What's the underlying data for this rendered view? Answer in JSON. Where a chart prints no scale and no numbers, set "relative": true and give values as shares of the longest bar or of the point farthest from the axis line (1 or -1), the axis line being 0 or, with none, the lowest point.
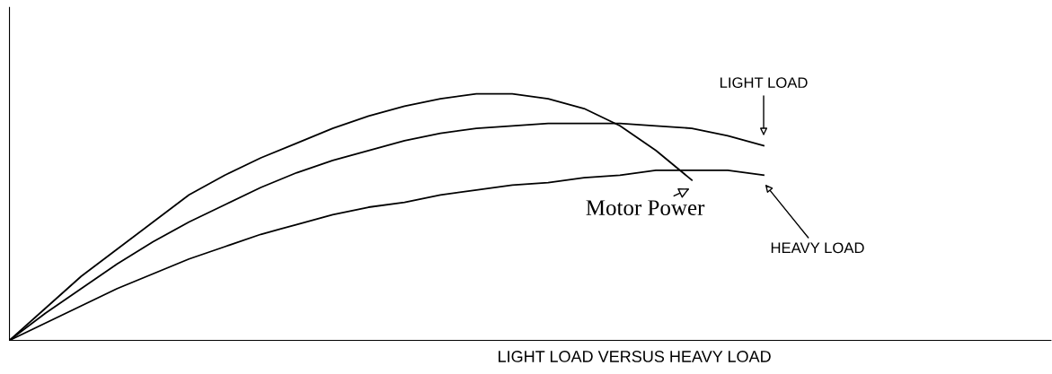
{
  "chart_data": {
    "type": "line",
    "relative": true,
    "xlabel": "LIGHT LOAD VERSUS HEAVY LOAD",
    "marker": "none",
    "line_style": "solid",
    "categories": [
      null,
      null,
      null,
      null,
      null,
      null,
      null,
      null,
      null,
      null,
      null,
      null,
      null,
      null,
      null,
      null,
      null,
      null,
      null,
      null,
      null,
      null,
      null,
      null,
      null,
      null,
      null,
      null,
      null,
      null
    ],
    "series": [
      {
        "name": "Motor Power",
        "color": "#000000",
        "values": [
          0,
          0.13,
          0.26,
          0.37,
          0.48,
          0.59,
          0.67,
          0.74,
          0.8,
          0.86,
          0.91,
          0.95,
          0.98,
          1.0,
          1.0,
          0.98,
          0.94,
          0.87,
          0.77,
          0.65,
          null,
          null,
          null,
          null,
          null,
          null,
          null,
          null,
          null,
          null
        ]
      },
      {
        "name": "LIGHT LOAD",
        "color": "#000000",
        "values": [
          0,
          0.11,
          0.21,
          0.31,
          0.4,
          0.48,
          0.55,
          0.62,
          0.68,
          0.73,
          0.77,
          0.81,
          0.84,
          0.86,
          0.87,
          0.88,
          0.88,
          0.88,
          0.87,
          0.86,
          0.83,
          0.79,
          null,
          null,
          null,
          null,
          null,
          null,
          null,
          null
        ]
      },
      {
        "name": "HEAVY LOAD",
        "color": "#000000",
        "values": [
          0,
          0.07,
          0.14,
          0.21,
          0.27,
          0.33,
          0.38,
          0.43,
          0.47,
          0.51,
          0.54,
          0.56,
          0.59,
          0.61,
          0.63,
          0.64,
          0.66,
          0.67,
          0.69,
          0.69,
          0.69,
          0.67,
          null,
          null,
          null,
          null,
          null,
          null,
          null,
          null
        ]
      }
    ]
  }
}
